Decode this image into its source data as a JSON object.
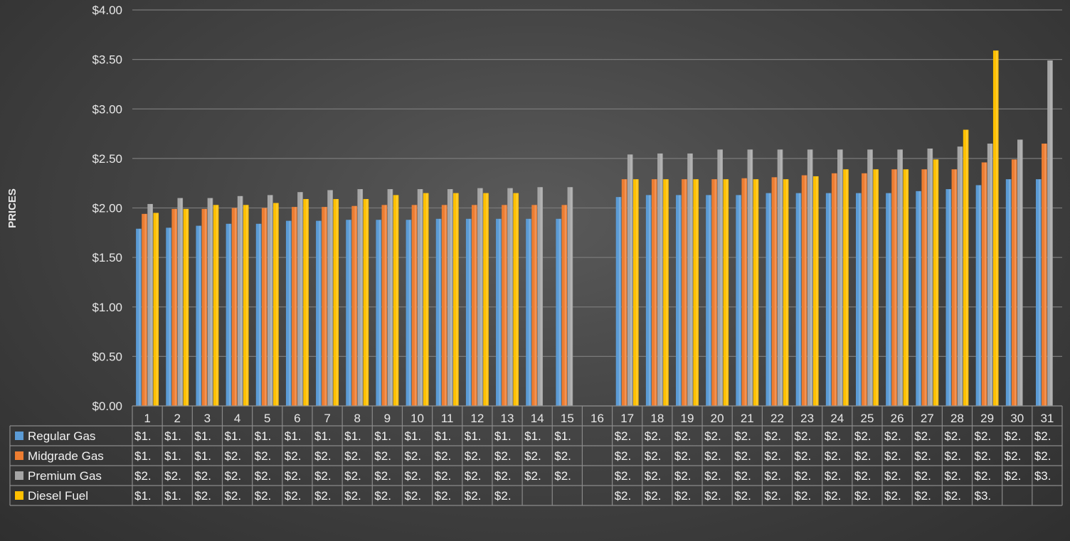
{
  "chart_data": {
    "type": "bar",
    "ylabel": "PRICES",
    "xlabel": "",
    "ylim": [
      0,
      4
    ],
    "yticks": [
      "$0.00",
      "$0.50",
      "$1.00",
      "$1.50",
      "$2.00",
      "$2.50",
      "$3.00",
      "$3.50",
      "$4.00"
    ],
    "ytick_values": [
      0,
      0.5,
      1,
      1.5,
      2,
      2.5,
      3,
      3.5,
      4
    ],
    "grid": true,
    "legend": "data-table",
    "categories": [
      "1",
      "2",
      "3",
      "4",
      "5",
      "6",
      "7",
      "8",
      "9",
      "10",
      "11",
      "12",
      "13",
      "14",
      "15",
      "16",
      "17",
      "18",
      "19",
      "20",
      "21",
      "22",
      "23",
      "24",
      "25",
      "26",
      "27",
      "28",
      "29",
      "30",
      "31"
    ],
    "series": [
      {
        "name": "Regular Gas",
        "color": "#5b9bd5",
        "values": [
          1.79,
          1.8,
          1.82,
          1.84,
          1.84,
          1.87,
          1.87,
          1.88,
          1.88,
          1.88,
          1.89,
          1.89,
          1.89,
          1.89,
          1.89,
          null,
          2.11,
          2.13,
          2.13,
          2.13,
          2.13,
          2.15,
          2.15,
          2.15,
          2.15,
          2.15,
          2.17,
          2.19,
          2.23,
          2.29,
          2.29
        ],
        "table": [
          "$1.",
          "$1.",
          "$1.",
          "$1.",
          "$1.",
          "$1.",
          "$1.",
          "$1.",
          "$1.",
          "$1.",
          "$1.",
          "$1.",
          "$1.",
          "$1.",
          "$1.",
          "",
          "$2.",
          "$2.",
          "$2.",
          "$2.",
          "$2.",
          "$2.",
          "$2.",
          "$2.",
          "$2.",
          "$2.",
          "$2.",
          "$2.",
          "$2.",
          "$2.",
          "$2."
        ]
      },
      {
        "name": "Midgrade Gas",
        "color": "#ed7d31",
        "values": [
          1.94,
          1.99,
          1.99,
          2.0,
          2.0,
          2.01,
          2.01,
          2.02,
          2.03,
          2.03,
          2.03,
          2.03,
          2.03,
          2.03,
          2.03,
          null,
          2.29,
          2.29,
          2.29,
          2.29,
          2.3,
          2.31,
          2.33,
          2.35,
          2.35,
          2.39,
          2.39,
          2.39,
          2.46,
          2.49,
          2.65
        ],
        "table": [
          "$1.",
          "$1.",
          "$1.",
          "$2.",
          "$2.",
          "$2.",
          "$2.",
          "$2.",
          "$2.",
          "$2.",
          "$2.",
          "$2.",
          "$2.",
          "$2.",
          "$2.",
          "",
          "$2.",
          "$2.",
          "$2.",
          "$2.",
          "$2.",
          "$2.",
          "$2.",
          "$2.",
          "$2.",
          "$2.",
          "$2.",
          "$2.",
          "$2.",
          "$2.",
          "$2."
        ]
      },
      {
        "name": "Premium Gas",
        "color": "#a5a5a5",
        "values": [
          2.04,
          2.1,
          2.1,
          2.12,
          2.13,
          2.16,
          2.18,
          2.19,
          2.19,
          2.19,
          2.19,
          2.2,
          2.2,
          2.21,
          2.21,
          null,
          2.54,
          2.55,
          2.55,
          2.59,
          2.59,
          2.59,
          2.59,
          2.59,
          2.59,
          2.59,
          2.6,
          2.62,
          2.65,
          2.69,
          3.49
        ],
        "table": [
          "$2.",
          "$2.",
          "$2.",
          "$2.",
          "$2.",
          "$2.",
          "$2.",
          "$2.",
          "$2.",
          "$2.",
          "$2.",
          "$2.",
          "$2.",
          "$2.",
          "$2.",
          "",
          "$2.",
          "$2.",
          "$2.",
          "$2.",
          "$2.",
          "$2.",
          "$2.",
          "$2.",
          "$2.",
          "$2.",
          "$2.",
          "$2.",
          "$2.",
          "$2.",
          "$3."
        ]
      },
      {
        "name": "Diesel Fuel",
        "color": "#ffc000",
        "values": [
          1.95,
          1.99,
          2.03,
          2.03,
          2.05,
          2.09,
          2.09,
          2.09,
          2.13,
          2.15,
          2.15,
          2.15,
          2.15,
          null,
          null,
          null,
          2.29,
          2.29,
          2.29,
          2.29,
          2.29,
          2.29,
          2.32,
          2.39,
          2.39,
          2.39,
          2.49,
          2.79,
          3.59,
          null,
          null
        ],
        "table": [
          "$1.",
          "$1.",
          "$2.",
          "$2.",
          "$2.",
          "$2.",
          "$2.",
          "$2.",
          "$2.",
          "$2.",
          "$2.",
          "$2.",
          "$2.",
          "",
          "",
          "",
          "$2.",
          "$2.",
          "$2.",
          "$2.",
          "$2.",
          "$2.",
          "$2.",
          "$2.",
          "$2.",
          "$2.",
          "$2.",
          "$2.",
          "$3.",
          "",
          ""
        ]
      }
    ]
  }
}
